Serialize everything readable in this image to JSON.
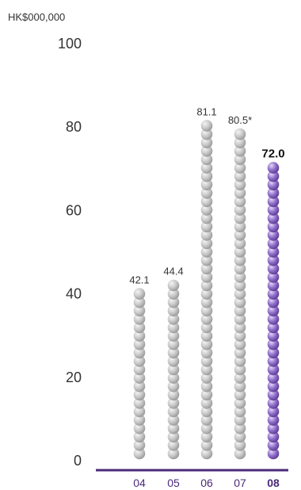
{
  "chart_data": {
    "type": "bar",
    "unit_label": "HK$000,000",
    "categories": [
      "04",
      "05",
      "06",
      "07",
      "08"
    ],
    "values": [
      42.1,
      44.4,
      81.1,
      80.5,
      72.0
    ],
    "value_labels": [
      "42.1",
      "44.4",
      "81.1",
      "80.5*",
      "72.0"
    ],
    "highlight_category": "08",
    "ylim": [
      0,
      100
    ],
    "yticks": [
      0,
      20,
      40,
      60,
      80,
      100
    ],
    "grid": false,
    "colors": {
      "pearl": "#c9c9c9",
      "pearl_highlight": "#f4f4f4",
      "pearl_shadow": "#9a9a9a",
      "highlight": "#8f6fc9",
      "highlight_light": "#e4d8f6",
      "highlight_shadow": "#5c3c96",
      "axis": "#4b2a7a",
      "category_text": "#4b2a7a",
      "text": "#333333"
    }
  }
}
